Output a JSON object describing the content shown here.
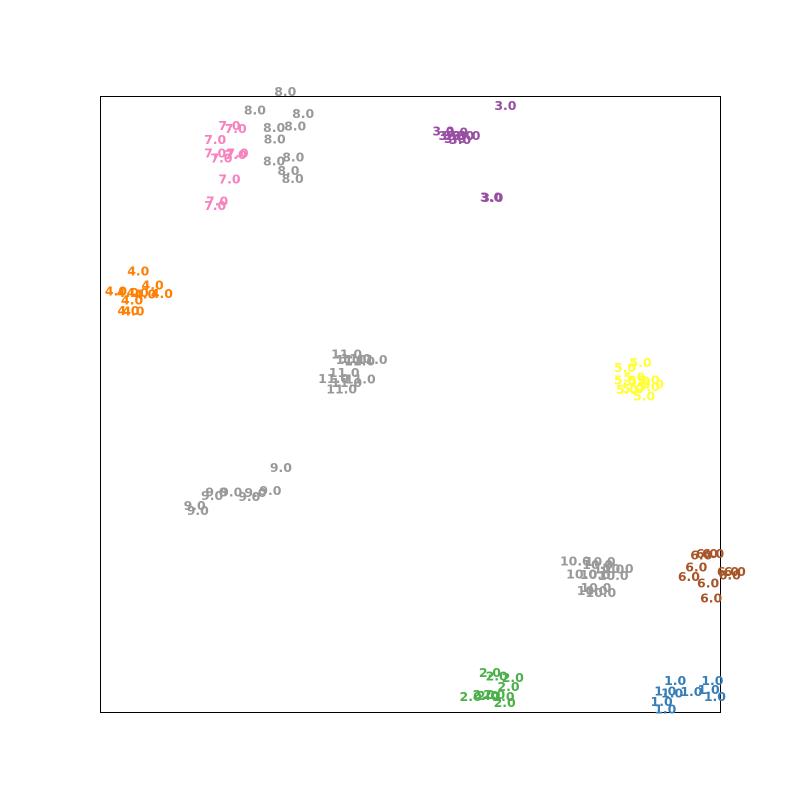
{
  "chart_data": {
    "type": "scatter",
    "title": "",
    "xlabel": "",
    "ylabel": "",
    "axes_ticks_visible": false,
    "grid": false,
    "legend": "none",
    "xlim": [
      0,
      100
    ],
    "ylim": [
      0,
      100
    ],
    "series": [
      {
        "label": "1.0",
        "color": "#377eb8",
        "points": [
          [
            92.7,
            5.2
          ],
          [
            98.7,
            5.2
          ],
          [
            91.1,
            3.5
          ],
          [
            95.3,
            3.4
          ],
          [
            98.1,
            3.7
          ],
          [
            92.2,
            3.2
          ],
          [
            90.5,
            1.8
          ],
          [
            99.1,
            2.6
          ],
          [
            91.1,
            0.6
          ]
        ]
      },
      {
        "label": "2.0",
        "color": "#4daf4a",
        "points": [
          [
            62.8,
            6.5
          ],
          [
            63.9,
            5.9
          ],
          [
            66.5,
            5.7
          ],
          [
            65.8,
            4.2
          ],
          [
            59.7,
            2.6
          ],
          [
            61.8,
            2.9
          ],
          [
            62.5,
            2.8
          ],
          [
            63.5,
            2.9
          ],
          [
            65.0,
            2.6
          ],
          [
            65.2,
            1.6
          ]
        ]
      },
      {
        "label": "3.0",
        "color": "#984ea3",
        "points": [
          [
            65.3,
            98.5
          ],
          [
            55.3,
            94.4
          ],
          [
            57.5,
            94.2
          ],
          [
            56.3,
            93.7
          ],
          [
            57.0,
            93.7
          ],
          [
            58.5,
            93.7
          ],
          [
            59.5,
            93.7
          ],
          [
            57.2,
            93.2
          ],
          [
            58.0,
            93.0
          ],
          [
            63.0,
            83.7
          ],
          [
            63.2,
            83.6
          ]
        ]
      },
      {
        "label": "4.0",
        "color": "#ff7f00",
        "points": [
          [
            6.1,
            71.7
          ],
          [
            8.4,
            69.4
          ],
          [
            2.5,
            68.4
          ],
          [
            4.4,
            68.2
          ],
          [
            6.0,
            68.2
          ],
          [
            7.2,
            67.9
          ],
          [
            9.9,
            68.0
          ],
          [
            5.1,
            67.0
          ],
          [
            4.5,
            65.3
          ],
          [
            5.3,
            65.2
          ]
        ]
      },
      {
        "label": "5.0",
        "color": "#ffff33",
        "points": [
          [
            87.1,
            56.8
          ],
          [
            84.6,
            56.0
          ],
          [
            86.1,
            54.5
          ],
          [
            84.6,
            54.0
          ],
          [
            88.4,
            54.0
          ],
          [
            86.9,
            53.8
          ],
          [
            89.1,
            53.3
          ],
          [
            88.4,
            52.9
          ],
          [
            85.9,
            52.6
          ],
          [
            84.9,
            52.4
          ],
          [
            87.7,
            51.4
          ]
        ]
      },
      {
        "label": "6.0",
        "color": "#a65628",
        "points": [
          [
            97.8,
            25.8
          ],
          [
            98.8,
            25.8
          ],
          [
            96.9,
            25.6
          ],
          [
            96.1,
            23.6
          ],
          [
            101.2,
            22.9
          ],
          [
            102.3,
            22.9
          ],
          [
            94.9,
            22.1
          ],
          [
            101.5,
            22.3
          ],
          [
            98.0,
            21.0
          ],
          [
            98.5,
            18.6
          ]
        ]
      },
      {
        "label": "7.0",
        "color": "#f781bf",
        "points": [
          [
            20.8,
            95.3
          ],
          [
            21.8,
            94.8
          ],
          [
            18.5,
            93.0
          ],
          [
            18.5,
            90.8
          ],
          [
            21.8,
            90.6
          ],
          [
            22.1,
            90.8
          ],
          [
            19.5,
            90.0
          ],
          [
            20.8,
            86.6
          ],
          [
            18.8,
            83.0
          ],
          [
            18.5,
            82.3
          ]
        ]
      },
      {
        "label": "8.0",
        "color": "#999999",
        "points": [
          [
            29.8,
            100.8
          ],
          [
            24.9,
            97.8
          ],
          [
            32.7,
            97.2
          ],
          [
            28.0,
            95.0
          ],
          [
            31.4,
            95.2
          ],
          [
            28.1,
            93.1
          ],
          [
            31.1,
            90.2
          ],
          [
            28.0,
            89.5
          ],
          [
            30.3,
            88.0
          ],
          [
            31.0,
            86.7
          ]
        ]
      },
      {
        "label": "9.0",
        "color": "#999999",
        "points": [
          [
            29.1,
            39.8
          ],
          [
            18.7,
            35.8
          ],
          [
            21.1,
            35.8
          ],
          [
            25.0,
            35.7
          ],
          [
            27.4,
            36.0
          ],
          [
            18.0,
            35.2
          ],
          [
            24.0,
            35.1
          ],
          [
            15.2,
            33.6
          ],
          [
            15.7,
            32.8
          ]
        ]
      },
      {
        "label": "10.0",
        "color": "#999999",
        "points": [
          [
            76.6,
            24.6
          ],
          [
            80.6,
            24.5
          ],
          [
            80.2,
            24.0
          ],
          [
            82.0,
            23.3
          ],
          [
            83.5,
            23.4
          ],
          [
            77.6,
            22.5
          ],
          [
            79.8,
            22.4
          ],
          [
            82.7,
            22.2
          ],
          [
            79.9,
            20.3
          ],
          [
            79.3,
            19.8
          ],
          [
            80.7,
            19.5
          ]
        ]
      },
      {
        "label": "11.0",
        "color": "#999999",
        "points": [
          [
            39.7,
            58.2
          ],
          [
            41.2,
            57.5
          ],
          [
            40.4,
            57.3
          ],
          [
            41.8,
            57.1
          ],
          [
            43.8,
            57.3
          ],
          [
            39.3,
            55.2
          ],
          [
            37.6,
            54.2
          ],
          [
            39.7,
            53.6
          ],
          [
            41.9,
            54.1
          ],
          [
            38.9,
            52.5
          ]
        ]
      }
    ]
  }
}
